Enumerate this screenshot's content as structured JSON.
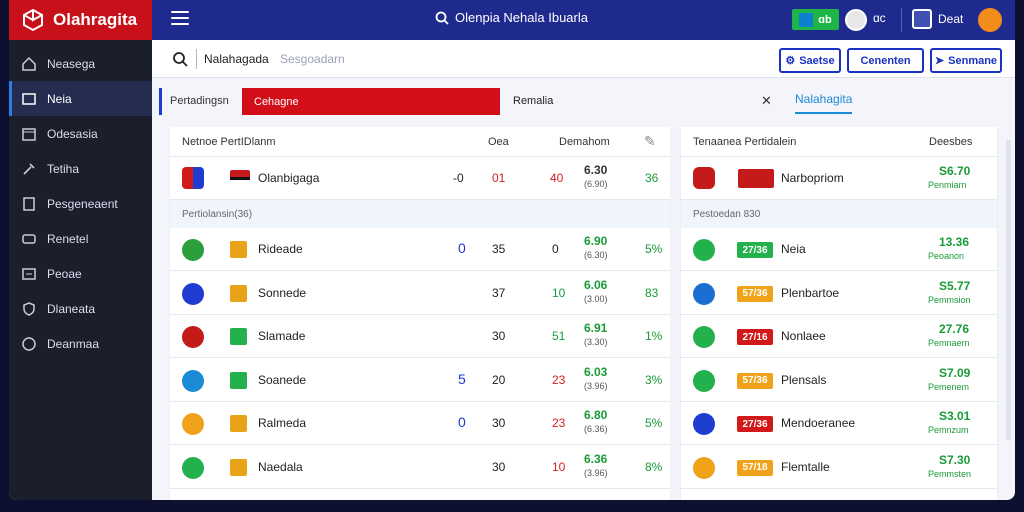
{
  "app": {
    "name": "Olahragita"
  },
  "header": {
    "search_text": "Olenpia Nehala Ibuarla",
    "toggle_label": "ɑb",
    "user_text": "ɑc",
    "profile_label": "Deat"
  },
  "sidebar": {
    "items": [
      {
        "label": "Neasega",
        "icon": "home-icon"
      },
      {
        "label": "Neia",
        "icon": "list-icon"
      },
      {
        "label": "Odesasia",
        "icon": "calendar-icon"
      },
      {
        "label": "Tetiha",
        "icon": "wrench-icon"
      },
      {
        "label": "Pesgeneaent",
        "icon": "document-icon"
      },
      {
        "label": "Renetel",
        "icon": "card-icon"
      },
      {
        "label": "Peoae",
        "icon": "slides-icon"
      },
      {
        "label": "Dlaneata",
        "icon": "shield-icon"
      },
      {
        "label": "Deanmaa",
        "icon": "info-icon"
      }
    ]
  },
  "toolbar": {
    "title": "Nalahagada",
    "placeholder": "Sesgoadarn",
    "buttons": [
      "Saetse",
      "Cenenten",
      "Senmane"
    ]
  },
  "filter": {
    "label": "Pertadingsn",
    "selected": "Cehagne",
    "right_label": "Remalia",
    "tab_label": "Nalahagita"
  },
  "left_table": {
    "header": {
      "title": "Netnoe PertIDlanm",
      "col1": "Oea",
      "col2": "Demahom",
      "icon": "pin-icon"
    },
    "top_row": {
      "name": "Olanbigaga",
      "a": "-0",
      "b": "01",
      "c": "40",
      "odds": "6.30",
      "odds_sub": "(6.90)",
      "pct": "36"
    },
    "section_label": "Pertiolansin(36)",
    "rows": [
      {
        "name": "Rideade",
        "a": "0",
        "b": "35",
        "c": "0",
        "odds": "6.90",
        "odds_sub": "(6.30)",
        "pct": "5%",
        "color": "#e9a319"
      },
      {
        "name": "Sonnede",
        "a": "",
        "b": "37",
        "c": "10",
        "odds": "6.06",
        "odds_sub": "(3.00)",
        "pct": "83",
        "color": "#e9a319"
      },
      {
        "name": "Slamade",
        "a": "",
        "b": "30",
        "c": "51",
        "odds": "6.91",
        "odds_sub": "(3.30)",
        "pct": "1%",
        "color": "#22b14c"
      },
      {
        "name": "Soanede",
        "a": "5",
        "b": "20",
        "c": "23",
        "odds": "6.03",
        "odds_sub": "(3.96)",
        "pct": "3%",
        "color": "#22b14c"
      },
      {
        "name": "Ralmeda",
        "a": "0",
        "b": "30",
        "c": "23",
        "odds": "6.80",
        "odds_sub": "(6.36)",
        "pct": "5%",
        "color": "#e9a319"
      },
      {
        "name": "Naedala",
        "a": "",
        "b": "30",
        "c": "10",
        "odds": "6.36",
        "odds_sub": "(3.96)",
        "pct": "8%",
        "color": "#e9a319"
      }
    ]
  },
  "right_table": {
    "header": {
      "title": "Tenaanea Pertidalein",
      "col": "Deesbes"
    },
    "top_row": {
      "name": "Narbopriom",
      "value": "S6.70",
      "sub": "Penmiarn"
    },
    "section_label": "Pestoedan 830",
    "rows": [
      {
        "tag": "27/36",
        "name": "Neia",
        "value": "13.36",
        "sub": "Peoanon",
        "color": "#22b14c"
      },
      {
        "tag": "57/36",
        "name": "Plenbartoe",
        "value": "S5.77",
        "sub": "Pemmsion",
        "color": "#f0a21b"
      },
      {
        "tag": "27/16",
        "name": "Nonlaee",
        "value": "27.76",
        "sub": "Pemnaern",
        "color": "#d21818"
      },
      {
        "tag": "57/36",
        "name": "Plensals",
        "value": "S7.09",
        "sub": "Pemenem",
        "color": "#f0a21b"
      },
      {
        "tag": "27/36",
        "name": "Mendoeranee",
        "value": "S3.01",
        "sub": "Pemnzum",
        "color": "#d21818"
      },
      {
        "tag": "57/18",
        "name": "Flemtalle",
        "value": "S7.30",
        "sub": "Pemmsten",
        "color": "#f0a21b"
      }
    ]
  }
}
